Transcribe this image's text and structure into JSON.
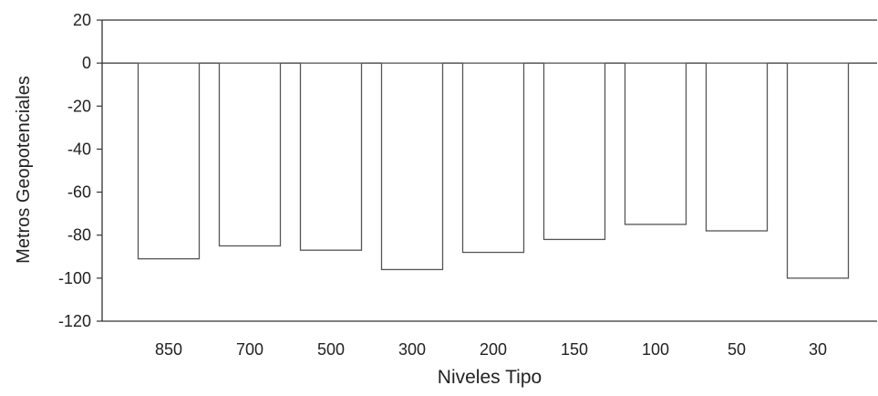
{
  "chart_data": {
    "type": "bar",
    "title": "",
    "xlabel": "Niveles Tipo",
    "ylabel": "Metros Geopotenciales",
    "categories": [
      "850",
      "700",
      "500",
      "300",
      "200",
      "150",
      "100",
      "50",
      "30"
    ],
    "values": [
      -91,
      -85,
      -87,
      -96,
      -88,
      -82,
      -75,
      -78,
      -100
    ],
    "ylim": [
      -120,
      20
    ],
    "yticks": [
      "20",
      "0",
      "-20",
      "-40",
      "-60",
      "-80",
      "-100",
      "-120"
    ],
    "yticks_values": [
      20,
      0,
      -20,
      -40,
      -60,
      -80,
      -100,
      -120
    ],
    "grid": false,
    "legend": "none",
    "colors": {
      "bar_fill": "#ffffff",
      "bar_stroke": "#555555",
      "axis": "#333333"
    }
  }
}
